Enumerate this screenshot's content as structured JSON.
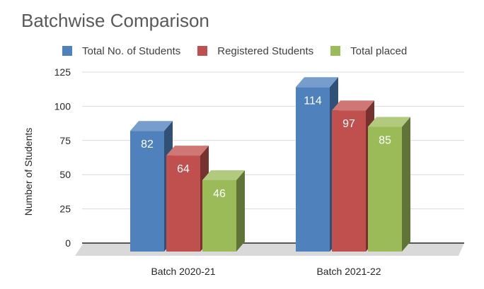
{
  "chart_data": {
    "type": "bar",
    "title": "Batchwise Comparison",
    "xlabel": "",
    "ylabel": "Number of Students",
    "categories": [
      "Batch 2020-21",
      "Batch 2021-22"
    ],
    "series": [
      {
        "name": "Total No. of Students",
        "values": [
          82,
          114
        ],
        "color": "#4f81bd"
      },
      {
        "name": "Registered Students",
        "values": [
          64,
          97
        ],
        "color": "#c0504d"
      },
      {
        "name": "Total placed",
        "values": [
          46,
          85
        ],
        "color": "#9bbb59"
      }
    ],
    "ylim": [
      0,
      125
    ],
    "yticks": [
      "0",
      "25",
      "50",
      "75",
      "100",
      "125"
    ],
    "grid": true,
    "legend_position": "top",
    "data_labels": true
  }
}
